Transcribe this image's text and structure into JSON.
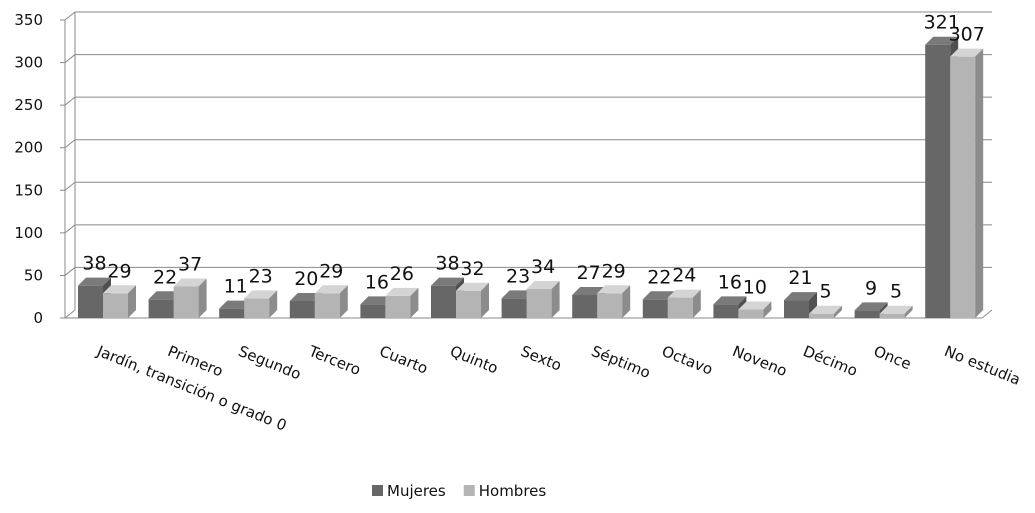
{
  "chart_data": {
    "type": "bar",
    "title": "",
    "categories": [
      "Jardín, transición o grado 0",
      "Primero",
      "Segundo",
      "Tercero",
      "Cuarto",
      "Quinto",
      "Sexto",
      "Séptimo",
      "Octavo",
      "Noveno",
      "Décimo",
      "Once",
      "No estudia"
    ],
    "series": [
      {
        "name": "Mujeres",
        "values": [
          38,
          22,
          11,
          20,
          16,
          38,
          23,
          27,
          22,
          16,
          21,
          9,
          321
        ],
        "color": "#676767"
      },
      {
        "name": "Hombres",
        "values": [
          29,
          37,
          23,
          29,
          26,
          32,
          34,
          29,
          24,
          10,
          5,
          5,
          307
        ],
        "color": "#b4b4b4"
      }
    ],
    "ylim": [
      0,
      350
    ],
    "yticks": [
      0,
      50,
      100,
      150,
      200,
      250,
      300,
      350
    ],
    "grid": true,
    "legend": "bottom",
    "style": "3d-clustered-column"
  }
}
